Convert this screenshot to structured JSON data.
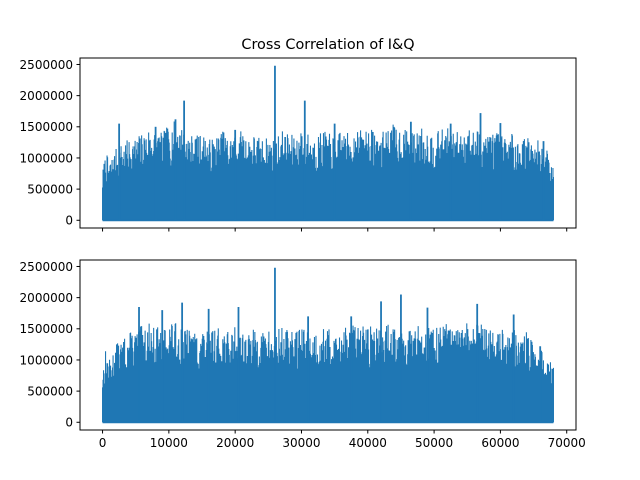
{
  "chart_data": [
    {
      "type": "line",
      "title": "Cross Correlation of I&Q",
      "xlabel": "",
      "ylabel": "",
      "xlim": [
        -3400,
        71400
      ],
      "ylim": [
        -124000,
        2604000
      ],
      "x_ticks": [
        0,
        10000,
        20000,
        30000,
        40000,
        50000,
        60000,
        70000
      ],
      "x_tick_labels_visible": false,
      "y_ticks": [
        0,
        500000,
        1000000,
        1500000,
        2000000,
        2500000
      ],
      "y_tick_labels": [
        "0",
        "500000",
        "1000000",
        "1500000",
        "2000000",
        "2500000"
      ],
      "grid": false,
      "color": "#1f77b4",
      "series": [
        {
          "x_range": [
            0,
            68000
          ],
          "baseline": 0,
          "envelope_x": [
            0,
            500,
            1000,
            2000,
            3000,
            4000,
            5000,
            6000,
            7000,
            8000,
            9000,
            10000,
            11000,
            12000,
            13000,
            14000,
            15000,
            16000,
            17000,
            18000,
            19000,
            20000,
            21000,
            22000,
            23000,
            24000,
            25000,
            26000,
            27000,
            28000,
            29000,
            30000,
            31000,
            32000,
            33000,
            34000,
            35000,
            36000,
            37000,
            38000,
            39000,
            40000,
            41000,
            42000,
            43000,
            44000,
            45000,
            46000,
            47000,
            48000,
            49000,
            50000,
            51000,
            52000,
            53000,
            54000,
            55000,
            56000,
            57000,
            58000,
            59000,
            60000,
            61000,
            62000,
            63000,
            64000,
            65000,
            66000,
            67000,
            68000
          ],
          "envelope_y": [
            800000,
            1100000,
            950000,
            1150000,
            1250000,
            1300000,
            1350000,
            1400000,
            1500000,
            1450000,
            1400000,
            1550000,
            1600000,
            1500000,
            1400000,
            1350000,
            1400000,
            1300000,
            1350000,
            1450000,
            1350000,
            1400000,
            1450000,
            1350000,
            1400000,
            1300000,
            1350000,
            1300000,
            1450000,
            1400000,
            1350000,
            1450000,
            1400000,
            1350000,
            1450000,
            1400000,
            1350000,
            1450000,
            1400000,
            1500000,
            1450000,
            1500000,
            1450000,
            1400000,
            1500000,
            1550000,
            1500000,
            1450000,
            1400000,
            1500000,
            1450000,
            1400000,
            1450000,
            1500000,
            1400000,
            1450000,
            1500000,
            1450000,
            1500000,
            1400000,
            1450000,
            1400000,
            1350000,
            1400000,
            1300000,
            1350000,
            1250000,
            1300000,
            1150000,
            900000
          ],
          "peaks": [
            [
              2500,
              1550000
            ],
            [
              8000,
              1500000
            ],
            [
              11000,
              1620000
            ],
            [
              12300,
              1920000
            ],
            [
              20000,
              1450000
            ],
            [
              26000,
              2480000
            ],
            [
              30500,
              1920000
            ],
            [
              35000,
              1550000
            ],
            [
              46500,
              1580000
            ],
            [
              52500,
              1550000
            ],
            [
              57000,
              1720000
            ],
            [
              60000,
              1560000
            ],
            [
              66500,
              1270000
            ]
          ]
        }
      ]
    },
    {
      "type": "line",
      "title": "",
      "xlabel": "",
      "ylabel": "",
      "xlim": [
        -3400,
        71400
      ],
      "ylim": [
        -124000,
        2604000
      ],
      "x_ticks": [
        0,
        10000,
        20000,
        30000,
        40000,
        50000,
        60000,
        70000
      ],
      "x_tick_labels": [
        "0",
        "10000",
        "20000",
        "30000",
        "40000",
        "50000",
        "60000",
        "70000"
      ],
      "y_ticks": [
        0,
        500000,
        1000000,
        1500000,
        2000000,
        2500000
      ],
      "y_tick_labels": [
        "0",
        "500000",
        "1000000",
        "1500000",
        "2000000",
        "2500000"
      ],
      "grid": false,
      "color": "#1f77b4",
      "series": [
        {
          "x_range": [
            0,
            68000
          ],
          "baseline": 0,
          "envelope_x": [
            0,
            500,
            1000,
            2000,
            3000,
            4000,
            5000,
            6000,
            7000,
            8000,
            9000,
            10000,
            11000,
            12000,
            13000,
            14000,
            15000,
            16000,
            17000,
            18000,
            19000,
            20000,
            21000,
            22000,
            23000,
            24000,
            25000,
            26000,
            27000,
            28000,
            29000,
            30000,
            31000,
            32000,
            33000,
            34000,
            35000,
            36000,
            37000,
            38000,
            39000,
            40000,
            41000,
            42000,
            43000,
            44000,
            45000,
            46000,
            47000,
            48000,
            49000,
            50000,
            51000,
            52000,
            53000,
            54000,
            55000,
            56000,
            57000,
            58000,
            59000,
            60000,
            61000,
            62000,
            63000,
            64000,
            65000,
            66000,
            67000,
            68000
          ],
          "envelope_y": [
            850000,
            1200000,
            1000000,
            1250000,
            1350000,
            1450000,
            1500000,
            1550000,
            1600000,
            1550000,
            1500000,
            1650000,
            1600000,
            1550000,
            1500000,
            1450000,
            1500000,
            1450000,
            1500000,
            1550000,
            1450000,
            1550000,
            1500000,
            1450000,
            1500000,
            1450000,
            1500000,
            1450000,
            1550000,
            1500000,
            1450000,
            1550000,
            1500000,
            1450000,
            1550000,
            1500000,
            1450000,
            1550000,
            1500000,
            1600000,
            1550000,
            1600000,
            1550000,
            1500000,
            1600000,
            1650000,
            1600000,
            1550000,
            1500000,
            1600000,
            1550000,
            1500000,
            1550000,
            1600000,
            1500000,
            1550000,
            1600000,
            1550000,
            1600000,
            1500000,
            1550000,
            1500000,
            1450000,
            1500000,
            1400000,
            1450000,
            1250000,
            1200000,
            1050000,
            950000
          ],
          "peaks": [
            [
              5500,
              1850000
            ],
            [
              9000,
              1800000
            ],
            [
              12000,
              1920000
            ],
            [
              16000,
              1820000
            ],
            [
              20500,
              1850000
            ],
            [
              26000,
              2480000
            ],
            [
              31000,
              1700000
            ],
            [
              37500,
              1700000
            ],
            [
              42000,
              1940000
            ],
            [
              45000,
              2050000
            ],
            [
              49000,
              1840000
            ],
            [
              56500,
              1900000
            ],
            [
              62000,
              1730000
            ],
            [
              66000,
              1220000
            ]
          ]
        }
      ]
    }
  ]
}
